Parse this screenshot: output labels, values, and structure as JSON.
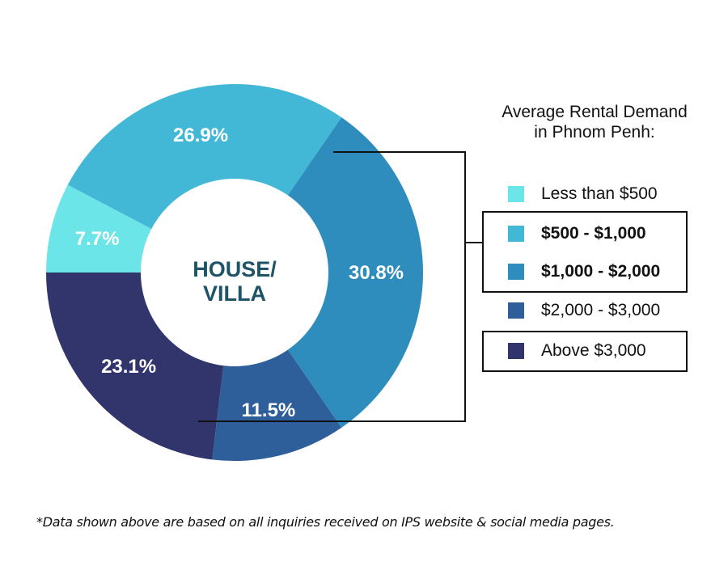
{
  "chart_data": {
    "type": "pie",
    "variant": "donut",
    "center_label": [
      "HOUSE/",
      "VILLA"
    ],
    "legend_title": [
      "Average Rental Demand",
      "in Phnom Penh:"
    ],
    "categories": [
      "Less than $500",
      "$500 - $1,000",
      "$1,000 - $2,000",
      "$2,000 - $3,000",
      "Above $3,000"
    ],
    "values": [
      7.7,
      26.9,
      30.8,
      11.5,
      23.1
    ],
    "labels": [
      "7.7%",
      "26.9%",
      "30.8%",
      "11.5%",
      "23.1%"
    ],
    "colors": [
      "#6ce5e8",
      "#42b8d6",
      "#2e8dbd",
      "#2f5f9a",
      "#31356b"
    ],
    "highlighted": [
      "$500 - $1,000",
      "$1,000 - $2,000",
      "Above $3,000"
    ],
    "legend_placement": "right"
  },
  "footnote": "*Data shown above are based on all inquiries received on IPS website & social media pages."
}
